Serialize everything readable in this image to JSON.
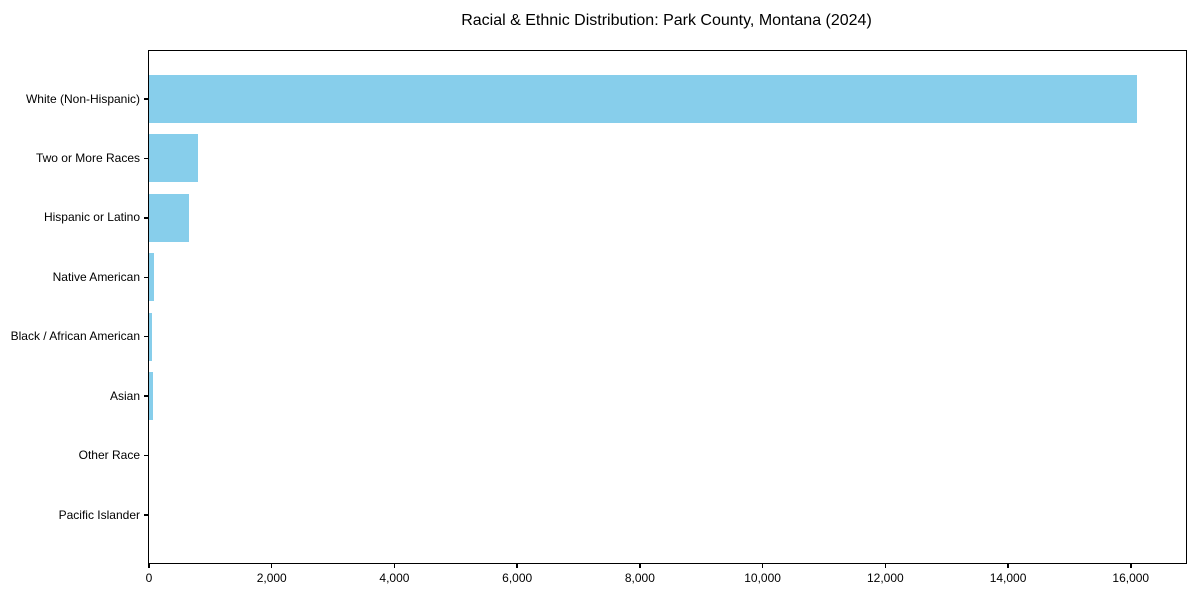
{
  "chart_data": {
    "type": "bar",
    "orientation": "horizontal",
    "title": "Racial & Ethnic Distribution: Park County, Montana (2024)",
    "categories": [
      "White (Non-Hispanic)",
      "Two or More Races",
      "Hispanic or Latino",
      "Native American",
      "Black / African American",
      "Asian",
      "Other Race",
      "Pacific Islander"
    ],
    "values": [
      16100,
      800,
      650,
      85,
      50,
      60,
      0,
      0
    ],
    "xlabel": "",
    "ylabel": "",
    "xlim": [
      0,
      16900
    ],
    "x_ticks": [
      0,
      2000,
      4000,
      6000,
      8000,
      10000,
      12000,
      14000,
      16000
    ],
    "x_tick_labels": [
      "0",
      "2,000",
      "4,000",
      "6,000",
      "8,000",
      "10,000",
      "12,000",
      "14,000",
      "16,000"
    ],
    "bar_color": "#87CEEB",
    "grid": false,
    "legend": null,
    "background_color": "#ffffff"
  }
}
